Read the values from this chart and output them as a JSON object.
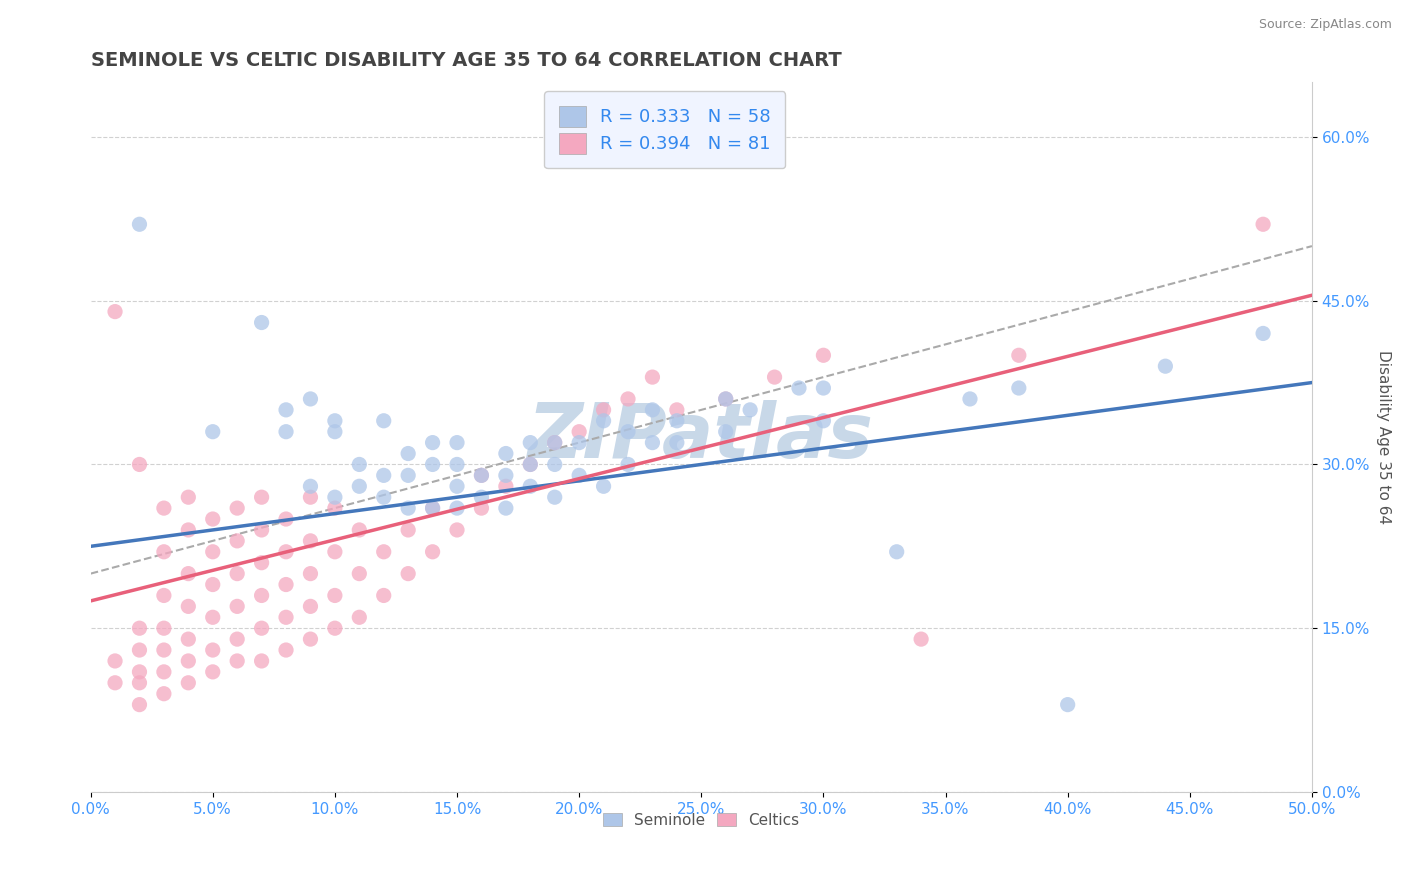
{
  "title": "SEMINOLE VS CELTIC DISABILITY AGE 35 TO 64 CORRELATION CHART",
  "source": "Source: ZipAtlas.com",
  "xlim": [
    0.0,
    0.5
  ],
  "ylim": [
    0.0,
    0.65
  ],
  "seminole_R": 0.333,
  "seminole_N": 58,
  "celtics_R": 0.394,
  "celtics_N": 81,
  "seminole_color": "#aec6e8",
  "celtics_color": "#f4a8c0",
  "seminole_line_color": "#4477bb",
  "celtics_line_color": "#e8607a",
  "dashed_line_color": "#aaaaaa",
  "watermark": "ZIPatlas",
  "watermark_color": "#c8d8e8",
  "legend_box_color": "#f0f4ff",
  "title_color": "#444444",
  "title_fontsize": 14,
  "axis_label_fontsize": 11,
  "tick_fontsize": 11,
  "tick_color": "#4499ff",
  "ylabel": "Disability Age 35 to 64",
  "seminole_trend_x0": 0.0,
  "seminole_trend_y0": 0.225,
  "seminole_trend_x1": 0.5,
  "seminole_trend_y1": 0.375,
  "celtics_trend_x0": 0.0,
  "celtics_trend_y0": 0.175,
  "celtics_trend_x1": 0.5,
  "celtics_trend_y1": 0.455,
  "dashed_trend_x0": 0.0,
  "dashed_trend_y0": 0.2,
  "dashed_trend_x1": 0.5,
  "dashed_trend_y1": 0.5,
  "seminole_x": [
    0.02,
    0.05,
    0.07,
    0.08,
    0.08,
    0.09,
    0.09,
    0.1,
    0.1,
    0.1,
    0.11,
    0.11,
    0.12,
    0.12,
    0.12,
    0.13,
    0.13,
    0.13,
    0.14,
    0.14,
    0.14,
    0.15,
    0.15,
    0.15,
    0.15,
    0.16,
    0.16,
    0.17,
    0.17,
    0.17,
    0.18,
    0.18,
    0.18,
    0.19,
    0.19,
    0.19,
    0.2,
    0.2,
    0.21,
    0.21,
    0.22,
    0.22,
    0.23,
    0.23,
    0.24,
    0.24,
    0.26,
    0.26,
    0.27,
    0.29,
    0.3,
    0.3,
    0.33,
    0.36,
    0.38,
    0.4,
    0.44,
    0.48
  ],
  "seminole_y": [
    0.52,
    0.33,
    0.43,
    0.33,
    0.35,
    0.28,
    0.36,
    0.27,
    0.33,
    0.34,
    0.28,
    0.3,
    0.27,
    0.29,
    0.34,
    0.26,
    0.29,
    0.31,
    0.26,
    0.3,
    0.32,
    0.26,
    0.28,
    0.3,
    0.32,
    0.27,
    0.29,
    0.26,
    0.29,
    0.31,
    0.28,
    0.3,
    0.32,
    0.27,
    0.3,
    0.32,
    0.29,
    0.32,
    0.28,
    0.34,
    0.3,
    0.33,
    0.32,
    0.35,
    0.32,
    0.34,
    0.33,
    0.36,
    0.35,
    0.37,
    0.34,
    0.37,
    0.22,
    0.36,
    0.37,
    0.08,
    0.39,
    0.42
  ],
  "celtics_x": [
    0.01,
    0.01,
    0.01,
    0.02,
    0.02,
    0.02,
    0.02,
    0.02,
    0.02,
    0.03,
    0.03,
    0.03,
    0.03,
    0.03,
    0.03,
    0.03,
    0.04,
    0.04,
    0.04,
    0.04,
    0.04,
    0.04,
    0.04,
    0.05,
    0.05,
    0.05,
    0.05,
    0.05,
    0.05,
    0.06,
    0.06,
    0.06,
    0.06,
    0.06,
    0.06,
    0.07,
    0.07,
    0.07,
    0.07,
    0.07,
    0.07,
    0.08,
    0.08,
    0.08,
    0.08,
    0.08,
    0.09,
    0.09,
    0.09,
    0.09,
    0.09,
    0.1,
    0.1,
    0.1,
    0.1,
    0.11,
    0.11,
    0.11,
    0.12,
    0.12,
    0.13,
    0.13,
    0.14,
    0.14,
    0.15,
    0.16,
    0.16,
    0.17,
    0.18,
    0.19,
    0.2,
    0.21,
    0.22,
    0.23,
    0.24,
    0.26,
    0.28,
    0.3,
    0.34,
    0.38,
    0.48
  ],
  "celtics_y": [
    0.1,
    0.12,
    0.44,
    0.08,
    0.1,
    0.11,
    0.13,
    0.15,
    0.3,
    0.09,
    0.11,
    0.13,
    0.15,
    0.18,
    0.22,
    0.26,
    0.1,
    0.12,
    0.14,
    0.17,
    0.2,
    0.24,
    0.27,
    0.11,
    0.13,
    0.16,
    0.19,
    0.22,
    0.25,
    0.12,
    0.14,
    0.17,
    0.2,
    0.23,
    0.26,
    0.12,
    0.15,
    0.18,
    0.21,
    0.24,
    0.27,
    0.13,
    0.16,
    0.19,
    0.22,
    0.25,
    0.14,
    0.17,
    0.2,
    0.23,
    0.27,
    0.15,
    0.18,
    0.22,
    0.26,
    0.16,
    0.2,
    0.24,
    0.18,
    0.22,
    0.2,
    0.24,
    0.22,
    0.26,
    0.24,
    0.26,
    0.29,
    0.28,
    0.3,
    0.32,
    0.33,
    0.35,
    0.36,
    0.38,
    0.35,
    0.36,
    0.38,
    0.4,
    0.14,
    0.4,
    0.52
  ]
}
